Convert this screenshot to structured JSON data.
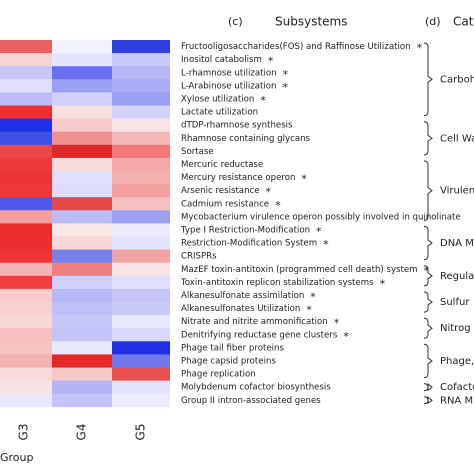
{
  "panel_c": "(c)",
  "panel_c_title": "Subsystems",
  "panel_d": "(d)",
  "panel_d_title": "Cat",
  "groups": [
    "G3",
    "G4",
    "G5"
  ],
  "group_axis_label": "Group",
  "categories": [
    {
      "label": "Carboh",
      "subsystems": [
        {
          "label": "Fructooligosaccharides(FOS) and Raffinose Utilization",
          "star": "*",
          "colors": [
            "#e86060",
            "#f2f2ff",
            "#3040e0"
          ]
        },
        {
          "label": "Inositol catabolism",
          "star": "*",
          "colors": [
            "#f7d4d4",
            "#e4e4ff",
            "#c8c8fa"
          ]
        },
        {
          "label": "L-rhamnose utilization",
          "star": "*",
          "colors": [
            "#c8c8f8",
            "#6870f0",
            "#b8b8f6"
          ]
        },
        {
          "label": "L-Arabinose utilization",
          "star": "*",
          "colors": [
            "#e0e0fc",
            "#9ca0f4",
            "#a8acf4"
          ]
        },
        {
          "label": "Xylose utilization",
          "star": "*",
          "colors": [
            "#bcbcf6",
            "#d0d0fa",
            "#9ca0f2"
          ]
        },
        {
          "label": "Lactate utilization",
          "colors": [
            "#f03030",
            "#f8e0e0",
            "#d4d4fa"
          ]
        }
      ]
    },
    {
      "label": "Cell Wa",
      "subsystems": [
        {
          "label": "dTDP-rhamnose synthesis",
          "colors": [
            "#2030e8",
            "#f6caca",
            "#f8e4e4"
          ]
        },
        {
          "label": "Rhamnose containing glycans",
          "colors": [
            "#4050e6",
            "#f09090",
            "#f4b8b8"
          ]
        },
        {
          "label": "Sortase",
          "colors": [
            "#ea4848",
            "#e02828",
            "#f07878"
          ]
        }
      ]
    },
    {
      "label": "Virulen",
      "subsystems": [
        {
          "label": "Mercuric reductase",
          "colors": [
            "#ee3a3a",
            "#f8dcdc",
            "#f4a8a8"
          ]
        },
        {
          "label": "Mercury resistance operon",
          "star": "*",
          "colors": [
            "#ec3434",
            "#e0e0fc",
            "#f5b0b0"
          ]
        },
        {
          "label": "Arsenic resistance",
          "star": "*",
          "colors": [
            "#ee3838",
            "#dcdcfc",
            "#f3a0a0"
          ]
        },
        {
          "label": "Cadmium resistance",
          "star": "*",
          "colors": [
            "#5058e8",
            "#e44848",
            "#f6c0c0"
          ]
        },
        {
          "label": "Mycobacterium virulence operon possibly involved in quinolinate",
          "colors": [
            "#f4a0a0",
            "#bcbcf6",
            "#9ca0f2"
          ]
        }
      ]
    },
    {
      "label": "DNA M",
      "subsystems": [
        {
          "label": "Type I Restriction-Modification",
          "star": "*",
          "colors": [
            "#ec2c2c",
            "#f8e8e8",
            "#ececfe"
          ]
        },
        {
          "label": "Restriction-Modification System",
          "star": "*",
          "colors": [
            "#ec2e2e",
            "#f6d6d6",
            "#e4e4fe"
          ]
        },
        {
          "label": "CRISPRs",
          "colors": [
            "#ee3434",
            "#7880ee",
            "#f2a4a4"
          ]
        }
      ]
    },
    {
      "label": "Regula",
      "subsystems": [
        {
          "label": "MazEF toxin-antitoxin (programmed cell death) system",
          "star": "*",
          "colors": [
            "#f4b4b4",
            "#f08080",
            "#f8e4e4"
          ]
        },
        {
          "label": "Toxin-antitoxin replicon stabilization systems",
          "star": "*",
          "colors": [
            "#ee4040",
            "#d0d0fa",
            "#e0e0fe"
          ]
        }
      ]
    },
    {
      "label": "Sulfur",
      "subsystems": [
        {
          "label": "Alkanesulfonate assimilation",
          "star": "*",
          "colors": [
            "#f8cccc",
            "#b8b8f6",
            "#c4c4f8"
          ]
        },
        {
          "label": "Alkanesulfonates Utilization",
          "star": "*",
          "colors": [
            "#f8d0d0",
            "#c0c0f8",
            "#cacaf8"
          ]
        }
      ]
    },
    {
      "label": "Nitrog",
      "subsystems": [
        {
          "label": "Nitrate and nitrite ammonification",
          "star": "*",
          "colors": [
            "#f9d8d8",
            "#c8c8f8",
            "#e8e8fe"
          ]
        },
        {
          "label": "Denitrifying reductase gene clusters",
          "star": "*",
          "colors": [
            "#f6c0c0",
            "#c4c4f8",
            "#d8d8fc"
          ]
        }
      ]
    },
    {
      "label": "Phage,",
      "subsystems": [
        {
          "label": "Phage tail fiber proteins",
          "colors": [
            "#f4c4c4",
            "#e8e8fe",
            "#2030e0"
          ]
        },
        {
          "label": "Phage capsid proteins",
          "colors": [
            "#f2b2b2",
            "#e42828",
            "#7078ec"
          ]
        },
        {
          "label": "Phage replication",
          "colors": [
            "#f8dada",
            "#f6c8c8",
            "#e85050"
          ]
        }
      ]
    },
    {
      "label": "Cofacto",
      "subsystems": [
        {
          "label": "Molybdenum cofactor biosynthesis",
          "colors": [
            "#f6e4e4",
            "#b4b4f6",
            "#e2e2fc"
          ]
        }
      ]
    },
    {
      "label": "RNA M",
      "subsystems": [
        {
          "label": "Group II intron-associated genes",
          "colors": [
            "#e8e8fc",
            "#c4c4f8",
            "#ececfe"
          ]
        }
      ]
    }
  ]
}
